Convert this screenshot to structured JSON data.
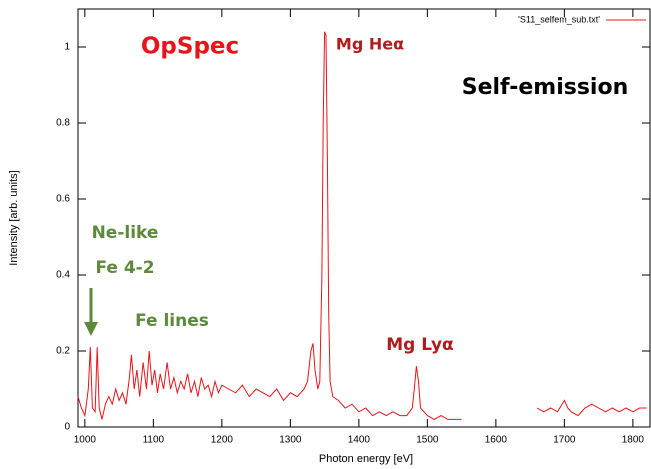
{
  "chart_data": {
    "type": "line",
    "xlabel": "Photon energy [eV]",
    "ylabel": "Intensity [arb. units]",
    "xlim": [
      990,
      1825
    ],
    "ylim": [
      0,
      1.1
    ],
    "xticks": [
      1000,
      1100,
      1200,
      1300,
      1400,
      1500,
      1600,
      1700,
      1800
    ],
    "yticks": [
      0,
      0.2,
      0.4,
      0.6,
      0.8,
      1
    ],
    "legend": "top-right",
    "annotations": [
      {
        "text": "OpSpec",
        "color": "#e8141b"
      },
      {
        "text": "Mg Heα",
        "color": "#b01c1c"
      },
      {
        "text": "Self-emission",
        "color": "#000000"
      },
      {
        "text": "Ne-like",
        "color": "#5b8a3a"
      },
      {
        "text": "Fe 4-2",
        "color": "#5b8a3a"
      },
      {
        "text": "Fe lines",
        "color": "#5b8a3a"
      },
      {
        "text": "Mg Lyα",
        "color": "#b01c1c"
      }
    ],
    "x": [
      990,
      995,
      1000,
      1005,
      1008,
      1011,
      1015,
      1018,
      1021,
      1025,
      1030,
      1035,
      1040,
      1045,
      1050,
      1055,
      1060,
      1065,
      1068,
      1072,
      1076,
      1080,
      1085,
      1090,
      1094,
      1098,
      1102,
      1106,
      1110,
      1115,
      1120,
      1125,
      1130,
      1135,
      1140,
      1145,
      1150,
      1155,
      1160,
      1165,
      1170,
      1175,
      1180,
      1185,
      1190,
      1195,
      1200,
      1210,
      1220,
      1230,
      1240,
      1250,
      1260,
      1270,
      1280,
      1290,
      1300,
      1310,
      1320,
      1325,
      1330,
      1333,
      1336,
      1340,
      1343,
      1346,
      1348,
      1350,
      1352,
      1354,
      1356,
      1358,
      1362,
      1370,
      1380,
      1390,
      1400,
      1410,
      1420,
      1430,
      1440,
      1450,
      1460,
      1470,
      1478,
      1481,
      1484,
      1487,
      1490,
      1500,
      1510,
      1520,
      1530,
      1540,
      1550,
      1555,
      1660,
      1670,
      1680,
      1690,
      1700,
      1705,
      1710,
      1720,
      1730,
      1740,
      1750,
      1760,
      1770,
      1780,
      1790,
      1800,
      1810,
      1820
    ],
    "series": [
      {
        "name": "'S11_selfem_sub.txt'",
        "color": "#e8141b",
        "values": [
          0.08,
          0.05,
          0.03,
          0.1,
          0.21,
          0.05,
          0.04,
          0.21,
          0.05,
          0.02,
          0.06,
          0.08,
          0.06,
          0.1,
          0.07,
          0.09,
          0.06,
          0.13,
          0.19,
          0.1,
          0.15,
          0.08,
          0.17,
          0.1,
          0.2,
          0.11,
          0.15,
          0.09,
          0.14,
          0.1,
          0.17,
          0.1,
          0.13,
          0.09,
          0.12,
          0.1,
          0.14,
          0.09,
          0.12,
          0.08,
          0.13,
          0.1,
          0.11,
          0.08,
          0.12,
          0.09,
          0.11,
          0.1,
          0.09,
          0.11,
          0.08,
          0.1,
          0.09,
          0.08,
          0.1,
          0.07,
          0.09,
          0.08,
          0.1,
          0.12,
          0.2,
          0.22,
          0.15,
          0.1,
          0.12,
          0.4,
          0.8,
          1.04,
          1.03,
          0.7,
          0.3,
          0.12,
          0.08,
          0.07,
          0.05,
          0.06,
          0.04,
          0.05,
          0.03,
          0.04,
          0.03,
          0.04,
          0.03,
          0.03,
          0.05,
          0.1,
          0.16,
          0.12,
          0.05,
          0.03,
          0.02,
          0.03,
          0.02,
          0.02,
          0.02,
          null,
          0.05,
          0.04,
          0.05,
          0.04,
          0.07,
          0.05,
          0.04,
          0.03,
          0.05,
          0.06,
          0.05,
          0.04,
          0.05,
          0.04,
          0.05,
          0.04,
          0.05,
          0.05
        ]
      }
    ]
  }
}
